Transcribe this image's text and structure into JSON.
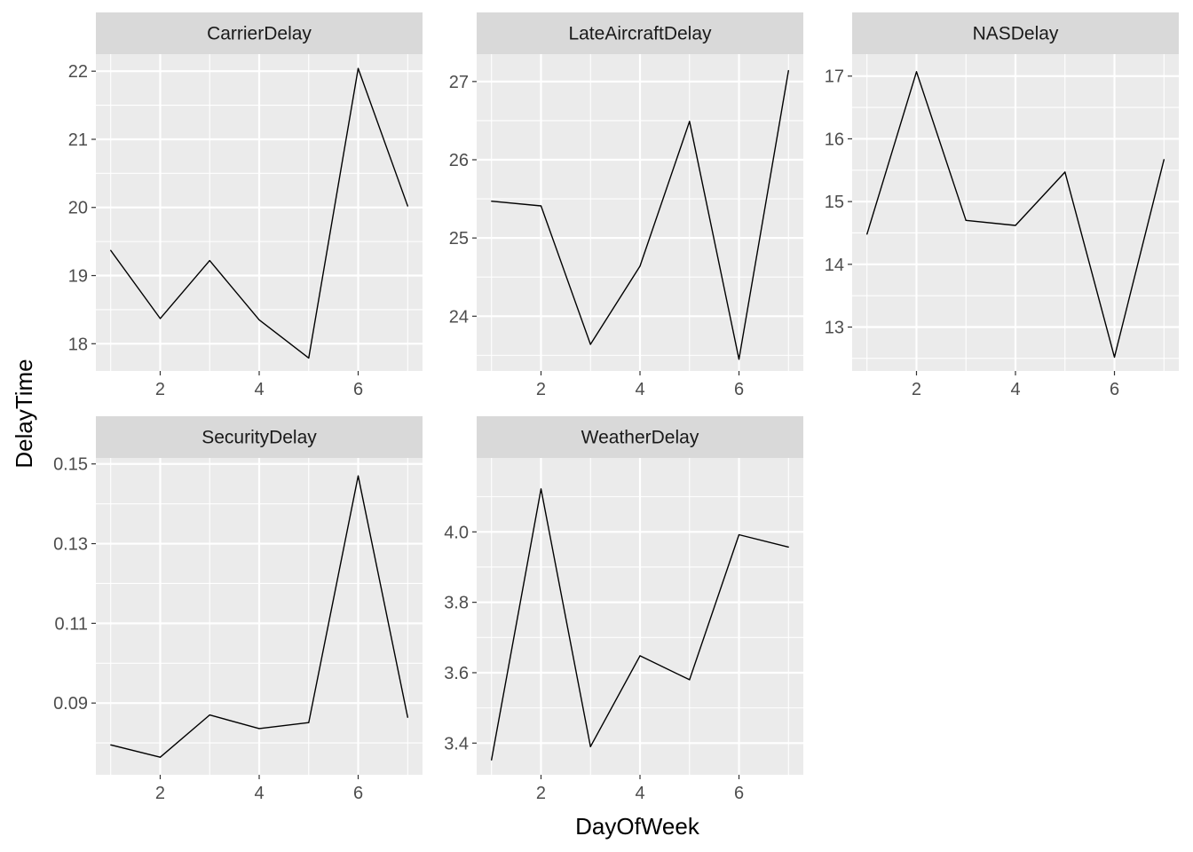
{
  "chart_data": {
    "type": "line",
    "xlabel": "DayOfWeek",
    "ylabel": "DelayTime",
    "x": [
      1,
      2,
      3,
      4,
      5,
      6,
      7
    ],
    "x_ticks": [
      2,
      4,
      6
    ],
    "x_tick_labels": [
      "2",
      "4",
      "6"
    ],
    "xlim": [
      0.7,
      7.3
    ],
    "grid": true,
    "panels": [
      {
        "title": "CarrierDelay",
        "values": [
          19.37,
          18.37,
          19.22,
          18.35,
          17.79,
          22.04,
          20.02
        ],
        "ylim": [
          17.6,
          22.25
        ],
        "y_ticks": [
          18,
          19,
          20,
          21,
          22
        ],
        "y_tick_labels": [
          "18",
          "19",
          "20",
          "21",
          "22"
        ]
      },
      {
        "title": "LateAircraftDelay",
        "values": [
          25.47,
          25.41,
          23.64,
          24.64,
          26.49,
          23.45,
          27.14
        ],
        "ylim": [
          23.3,
          27.35
        ],
        "y_ticks": [
          24,
          25,
          26,
          27
        ],
        "y_tick_labels": [
          "24",
          "25",
          "26",
          "27"
        ]
      },
      {
        "title": "NASDelay",
        "values": [
          14.48,
          17.07,
          14.7,
          14.62,
          15.47,
          12.52,
          15.67
        ],
        "ylim": [
          12.3,
          17.35
        ],
        "y_ticks": [
          13,
          14,
          15,
          16,
          17
        ],
        "y_tick_labels": [
          "13",
          "14",
          "15",
          "16",
          "17"
        ]
      },
      {
        "title": "SecurityDelay",
        "values": [
          0.0795,
          0.0764,
          0.087,
          0.0836,
          0.0851,
          0.147,
          0.0864
        ],
        "ylim": [
          0.072,
          0.1515
        ],
        "y_ticks": [
          0.09,
          0.11,
          0.13,
          0.15
        ],
        "y_tick_labels": [
          "0.09",
          "0.11",
          "0.13",
          "0.15"
        ]
      },
      {
        "title": "WeatherDelay",
        "values": [
          3.352,
          4.122,
          3.39,
          3.648,
          3.58,
          3.992,
          3.957
        ],
        "ylim": [
          3.31,
          4.21
        ],
        "y_ticks": [
          3.4,
          3.6,
          3.8,
          4.0
        ],
        "y_tick_labels": [
          "3.4",
          "3.6",
          "3.8",
          "4.0"
        ]
      }
    ]
  }
}
